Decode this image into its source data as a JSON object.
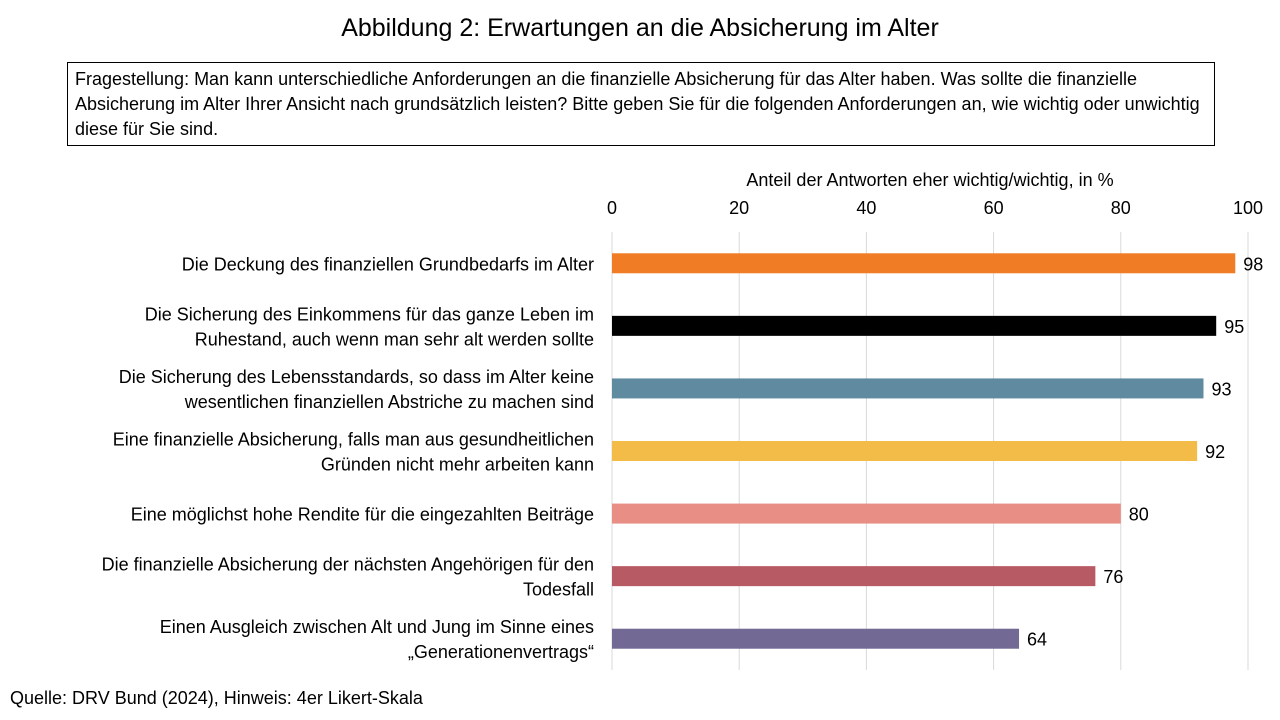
{
  "title": "Abbildung 2: Erwartungen an die Absicherung im Alter",
  "question": "Fragestellung: Man kann unterschiedliche Anforderungen an die finanzielle Absicherung für das Alter haben. Was sollte die finanzielle Absicherung im Alter Ihrer Ansicht nach grundsätzlich leisten? Bitte geben Sie für die folgenden Anforderungen an, wie wichtig oder unwichtig diese für Sie sind.",
  "source": "Quelle: DRV Bund (2024), Hinweis: 4er Likert-Skala",
  "chart_data": {
    "type": "bar",
    "orientation": "horizontal",
    "xlabel": "Anteil der Antworten eher wichtig/wichtig, in %",
    "xlim": [
      0,
      100
    ],
    "xticks": [
      "0",
      "20",
      "40",
      "60",
      "80",
      "100"
    ],
    "grid": true,
    "categories": [
      [
        "Die Deckung des finanziellen Grundbedarfs im Alter"
      ],
      [
        "Die Sicherung des Einkommens für das ganze Leben im",
        "Ruhestand, auch wenn man sehr alt werden sollte"
      ],
      [
        "Die Sicherung des Lebensstandards, so dass im Alter keine",
        "wesentlichen finanziellen Abstriche zu machen sind"
      ],
      [
        "Eine finanzielle Absicherung, falls man aus gesundheitlichen",
        "Gründen nicht mehr arbeiten kann"
      ],
      [
        "Eine möglichst hohe Rendite für die eingezahlten Beiträge"
      ],
      [
        "Die finanzielle Absicherung der nächsten Angehörigen für den",
        "Todesfall"
      ],
      [
        "Einen Ausgleich zwischen Alt und Jung im Sinne eines",
        "„Generationenvertrags“"
      ]
    ],
    "values": [
      98,
      95,
      93,
      92,
      80,
      76,
      64
    ],
    "value_labels": [
      "98",
      "95",
      "93",
      "92",
      "80",
      "76",
      "64"
    ],
    "colors": [
      "#F07D26",
      "#000000",
      "#5F8AA0",
      "#F3BC49",
      "#E98E85",
      "#B85A63",
      "#726A94"
    ]
  }
}
